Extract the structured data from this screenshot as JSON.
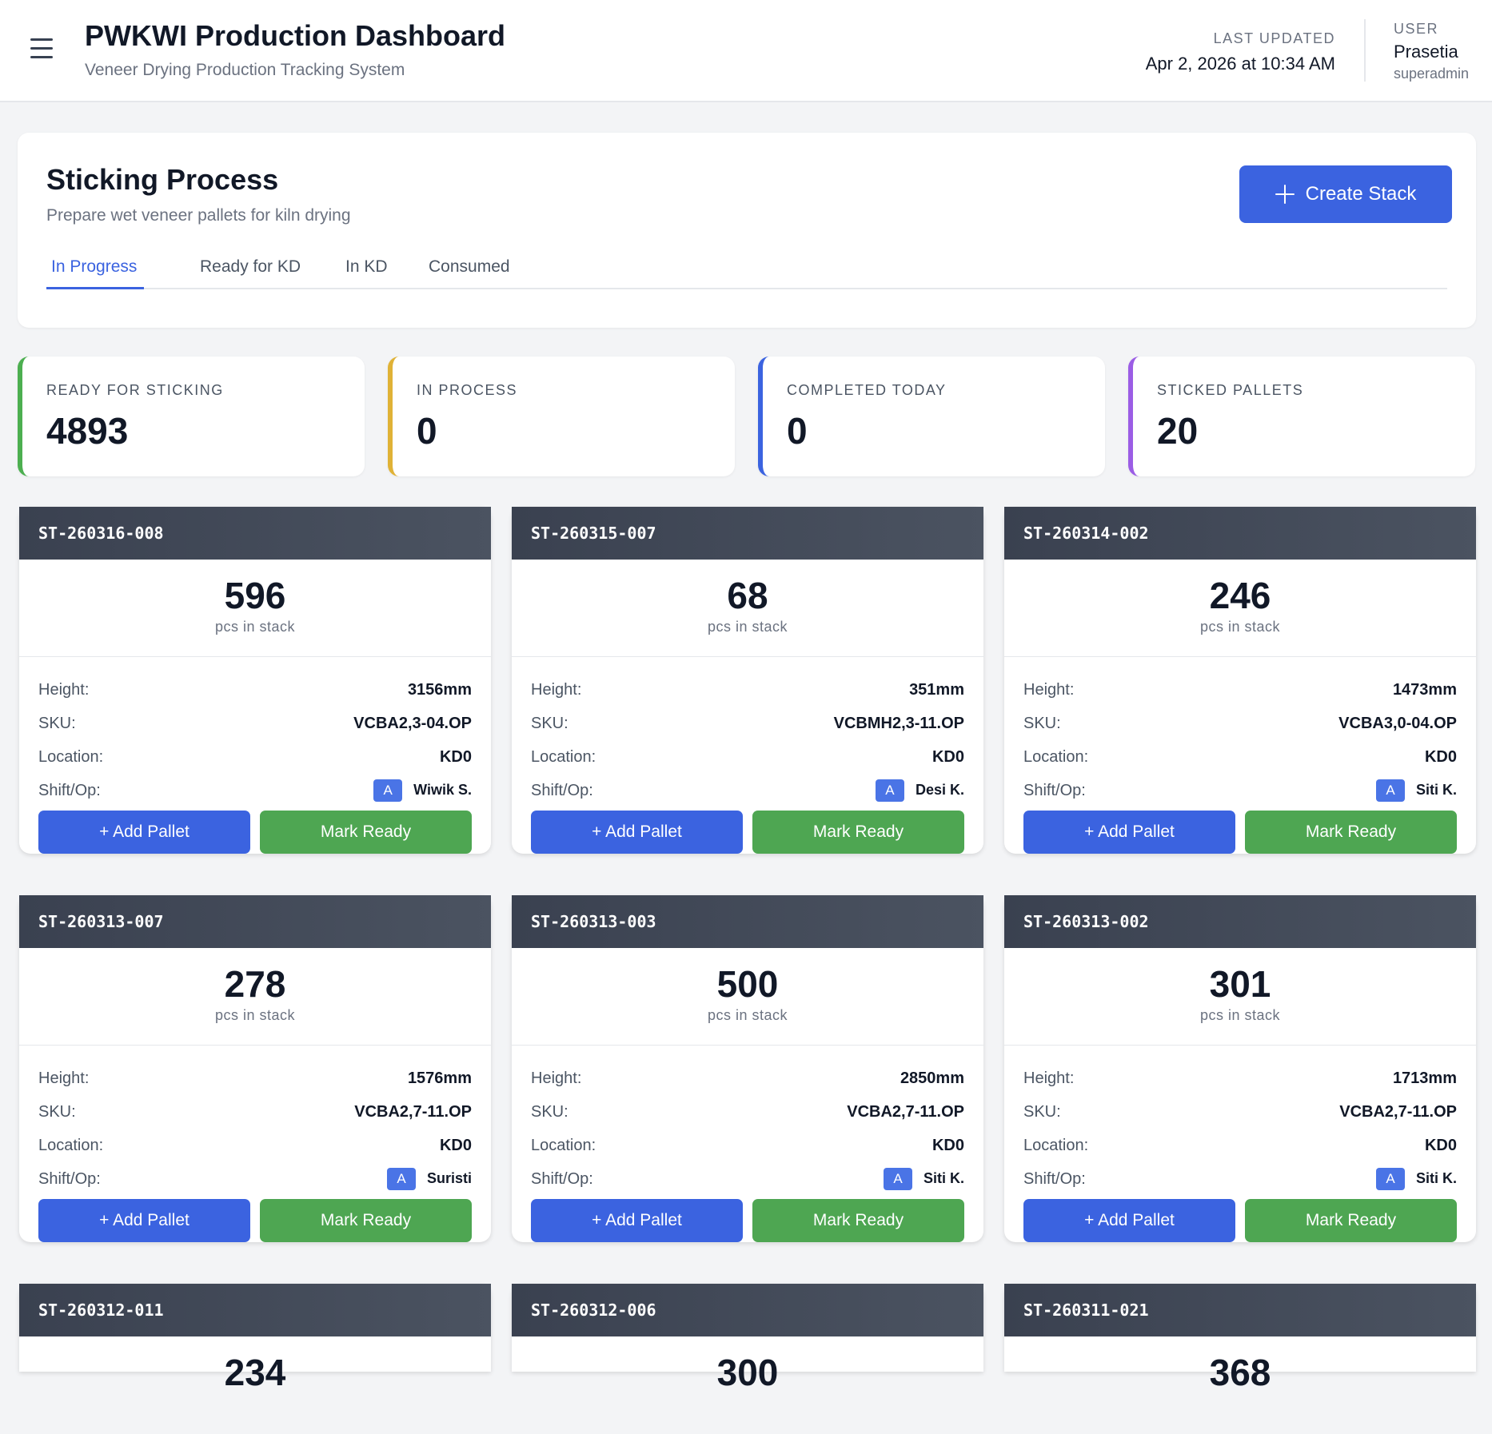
{
  "header": {
    "title": "PWKWI Production Dashboard",
    "subtitle": "Veneer Drying Production Tracking System",
    "last_updated_label": "LAST UPDATED",
    "last_updated_value": "Apr 2, 2026 at 10:34 AM",
    "user_label": "USER",
    "user_name": "Prasetia",
    "user_role": "superadmin"
  },
  "panel": {
    "title": "Sticking Process",
    "subtitle": "Prepare wet veneer pallets for kiln drying",
    "create_button": "Create Stack",
    "tabs": [
      {
        "label": "In Progress",
        "active": true
      },
      {
        "label": "Ready for KD",
        "active": false
      },
      {
        "label": "In KD",
        "active": false
      },
      {
        "label": "Consumed",
        "active": false
      }
    ]
  },
  "stats": [
    {
      "label": "READY FOR STICKING",
      "value": "4893",
      "color": "#4caf50"
    },
    {
      "label": "IN PROCESS",
      "value": "0",
      "color": "#e0b236"
    },
    {
      "label": "COMPLETED TODAY",
      "value": "0",
      "color": "#3b63e0"
    },
    {
      "label": "STICKED PALLETS",
      "value": "20",
      "color": "#9b5de5"
    }
  ],
  "card_labels": {
    "unit": "pcs in stack",
    "height": "Height:",
    "sku": "SKU:",
    "location": "Location:",
    "shift_op": "Shift/Op:",
    "add_pallet": "+ Add Pallet",
    "mark_ready": "Mark Ready"
  },
  "stacks": [
    {
      "id": "ST-260316-008",
      "pcs": "596",
      "height": "3156mm",
      "sku": "VCBA2,3-04.OP",
      "location": "KD0",
      "shift": "A",
      "operator": "Wiwik S."
    },
    {
      "id": "ST-260315-007",
      "pcs": "68",
      "height": "351mm",
      "sku": "VCBMH2,3-11.OP",
      "location": "KD0",
      "shift": "A",
      "operator": "Desi K."
    },
    {
      "id": "ST-260314-002",
      "pcs": "246",
      "height": "1473mm",
      "sku": "VCBA3,0-04.OP",
      "location": "KD0",
      "shift": "A",
      "operator": "Siti K."
    },
    {
      "id": "ST-260313-007",
      "pcs": "278",
      "height": "1576mm",
      "sku": "VCBA2,7-11.OP",
      "location": "KD0",
      "shift": "A",
      "operator": "Suristi"
    },
    {
      "id": "ST-260313-003",
      "pcs": "500",
      "height": "2850mm",
      "sku": "VCBA2,7-11.OP",
      "location": "KD0",
      "shift": "A",
      "operator": "Siti K."
    },
    {
      "id": "ST-260313-002",
      "pcs": "301",
      "height": "1713mm",
      "sku": "VCBA2,7-11.OP",
      "location": "KD0",
      "shift": "A",
      "operator": "Siti K."
    },
    {
      "id": "ST-260312-011",
      "pcs": "234"
    },
    {
      "id": "ST-260312-006",
      "pcs": "300"
    },
    {
      "id": "ST-260311-021",
      "pcs": "368"
    }
  ]
}
